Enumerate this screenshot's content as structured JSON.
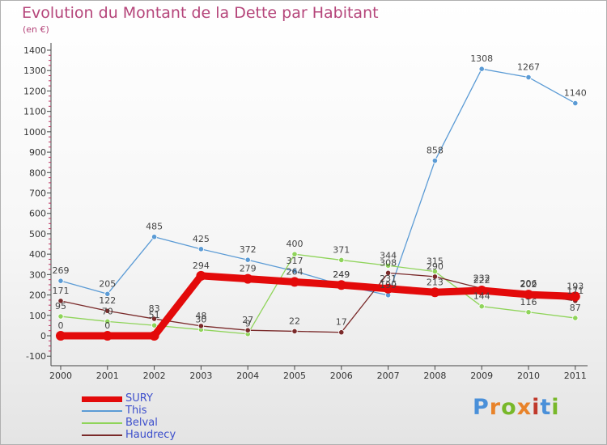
{
  "header": {
    "title": "Evolution du Montant de la Dette par Habitant",
    "subtitle": "(en €)"
  },
  "logo": {
    "text": "Proxiti",
    "colors": [
      "#4a90d9",
      "#e8832a",
      "#78b82a",
      "#e8832a",
      "#c0392b",
      "#4a90d9",
      "#78b82a"
    ]
  },
  "chart_data": {
    "type": "line",
    "title": "Evolution du Montant de la Dette par Habitant",
    "subtitle": "(en €)",
    "x": [
      "2000",
      "2001",
      "2002",
      "2003",
      "2004",
      "2005",
      "2006",
      "2007",
      "2008",
      "2009",
      "2010",
      "2011"
    ],
    "ylim": [
      -100,
      1400
    ],
    "yticks": [
      "-100",
      "0",
      "100",
      "200",
      "300",
      "400",
      "500",
      "600",
      "700",
      "800",
      "900",
      "1000",
      "1100",
      "1200",
      "1300",
      "1400"
    ],
    "grid": false,
    "legend_position": "bottom-left",
    "series": [
      {
        "name": "This",
        "color": "#5b9bd5",
        "values": [
          269,
          205,
          485,
          425,
          372,
          317,
          249,
          199,
          858,
          1308,
          1267,
          1140
        ],
        "labels": [
          "269",
          "205",
          "485",
          "425",
          "372",
          "317",
          "249",
          "199",
          "858",
          "1308",
          "1267",
          "1140"
        ]
      },
      {
        "name": "Belval",
        "color": "#8fd45a",
        "values": [
          95,
          70,
          51,
          30,
          9,
          400,
          371,
          344,
          315,
          144,
          116,
          87
        ],
        "labels": [
          "95",
          "70",
          "51",
          "30",
          "9",
          "400",
          "371",
          "344",
          "315",
          "144",
          "116",
          "87"
        ]
      },
      {
        "name": "Haudrecy",
        "color": "#7a2a2a",
        "values": [
          171,
          122,
          83,
          48,
          27,
          22,
          17,
          308,
          290,
          232,
          206,
          171
        ],
        "labels": [
          "171",
          "122",
          "83",
          "48",
          "27",
          "22",
          "17",
          "308",
          "290",
          "232",
          "206",
          "171"
        ]
      },
      {
        "name": "SURY",
        "color": "#e30a0a",
        "values": [
          0,
          0,
          0,
          294,
          279,
          264,
          249,
          231,
          213,
          222,
          202,
          193
        ],
        "labels": [
          "0",
          "0",
          "",
          "294",
          "279",
          "264",
          "249",
          "231",
          "213",
          "222",
          "202",
          "193"
        ]
      }
    ],
    "legend": [
      "SURY",
      "This",
      "Belval",
      "Haudrecy"
    ]
  }
}
